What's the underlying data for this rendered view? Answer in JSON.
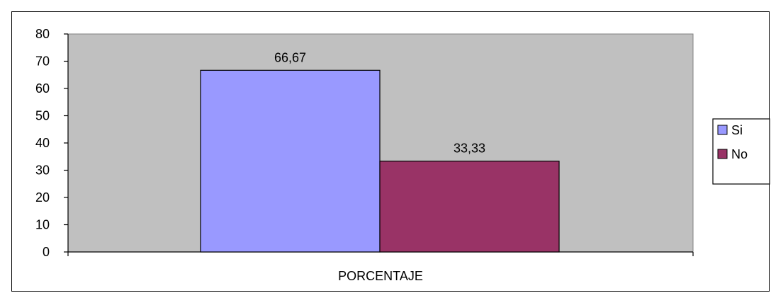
{
  "chart_data": {
    "type": "bar",
    "title": "",
    "xlabel": "",
    "ylabel": "",
    "categories": [
      "PORCENTAJE"
    ],
    "series": [
      {
        "name": "Si",
        "values": [
          66.67
        ],
        "label": "66,67",
        "color": "#9999ff"
      },
      {
        "name": "No",
        "values": [
          33.33
        ],
        "label": "33,33",
        "color": "#993366"
      }
    ],
    "ylim": [
      0,
      80
    ],
    "yticks": [
      "0",
      "10",
      "20",
      "30",
      "40",
      "50",
      "60",
      "70",
      "80"
    ],
    "plot_background": "#c0c0c0",
    "grid": false,
    "legend_position": "right"
  }
}
